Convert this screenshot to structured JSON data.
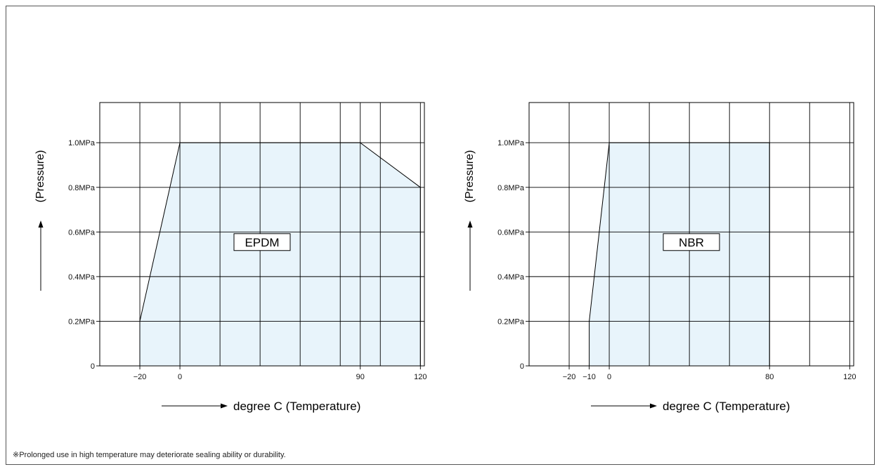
{
  "note": "※Prolonged use in high temperature may deteriorate sealing ability or durability.",
  "colors": {
    "fill": "#e8f4fb",
    "line": "#000000",
    "grid": "#000000"
  },
  "chart_data": [
    {
      "type": "area",
      "label": "EPDM",
      "xlabel": "degree C (Temperature)",
      "ylabel": "(Pressure)",
      "x_ticks": [
        {
          "value": -20,
          "text": "−20"
        },
        {
          "value": 0,
          "text": "0"
        },
        {
          "value": 90,
          "text": "90"
        },
        {
          "value": 120,
          "text": "120"
        }
      ],
      "y_ticks": [
        {
          "value": 0,
          "text": "0"
        },
        {
          "value": 0.2,
          "text": "0.2MPa"
        },
        {
          "value": 0.4,
          "text": "0.4MPa"
        },
        {
          "value": 0.6,
          "text": "0.6MPa"
        },
        {
          "value": 0.8,
          "text": "0.8MPa"
        },
        {
          "value": 1.0,
          "text": "1.0MPa"
        }
      ],
      "xlim": [
        -40,
        122
      ],
      "ylim": [
        0,
        1.18
      ],
      "grid": true,
      "x_gridlines": [
        -40,
        -20,
        0,
        20,
        40,
        60,
        80,
        90,
        100,
        120
      ],
      "y_gridlines": [
        0,
        0.2,
        0.4,
        0.6,
        0.8,
        1.0
      ],
      "x": [
        -20,
        -20,
        0,
        90,
        120,
        120
      ],
      "y": [
        0,
        0.2,
        1.0,
        1.0,
        0.8,
        0
      ]
    },
    {
      "type": "area",
      "label": "NBR",
      "xlabel": "degree C (Temperature)",
      "ylabel": "(Pressure)",
      "x_ticks": [
        {
          "value": -20,
          "text": "−20"
        },
        {
          "value": -10,
          "text": "−10"
        },
        {
          "value": 0,
          "text": "0"
        },
        {
          "value": 80,
          "text": "80"
        },
        {
          "value": 120,
          "text": "120"
        }
      ],
      "y_ticks": [
        {
          "value": 0,
          "text": "0"
        },
        {
          "value": 0.2,
          "text": "0.2MPa"
        },
        {
          "value": 0.4,
          "text": "0.4MPa"
        },
        {
          "value": 0.6,
          "text": "0.6MPa"
        },
        {
          "value": 0.8,
          "text": "0.8MPa"
        },
        {
          "value": 1.0,
          "text": "1.0MPa"
        }
      ],
      "xlim": [
        -40,
        122
      ],
      "ylim": [
        0,
        1.18
      ],
      "grid": true,
      "x_gridlines": [
        -40,
        -20,
        0,
        20,
        40,
        60,
        80,
        100,
        120
      ],
      "y_gridlines": [
        0,
        0.2,
        0.4,
        0.6,
        0.8,
        1.0
      ],
      "x": [
        -10,
        -10,
        0,
        80,
        80
      ],
      "y": [
        0,
        0.2,
        1.0,
        1.0,
        0
      ]
    }
  ]
}
